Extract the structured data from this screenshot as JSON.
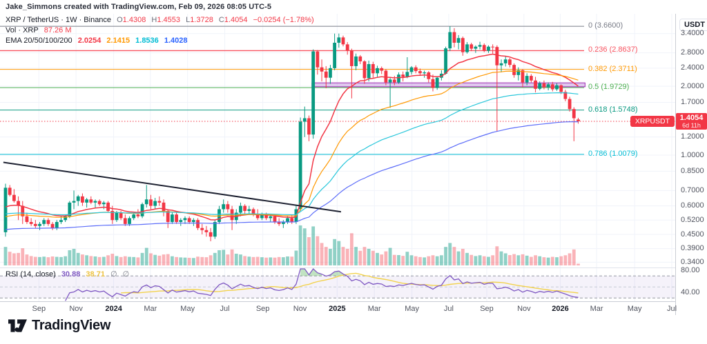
{
  "attribution": "Jake_Simmons created with TradingView.com, Feb 09, 2026 08:05 UTC-5",
  "symbol_legend": {
    "title": "XRP / TetherUS · 1W · Binance",
    "o_label": "O",
    "o": "1.4308",
    "h_label": "H",
    "h": "1.4553",
    "l_label": "L",
    "l": "1.3728",
    "c_label": "C",
    "c": "1.4054",
    "change": "−0.0254 (−1.78%)"
  },
  "volume_legend": {
    "title": "Vol · XRP",
    "value": "87.26 M"
  },
  "ema_legend": {
    "title": "EMA 20/50/100/200",
    "values": [
      {
        "text": "2.0254",
        "color": "#f23645"
      },
      {
        "text": "2.1415",
        "color": "#ff9800"
      },
      {
        "text": "1.8536",
        "color": "#00bcd4"
      },
      {
        "text": "1.4028",
        "color": "#2962ff"
      }
    ]
  },
  "rsi_legend": {
    "title": "RSI (14, close)",
    "value1": "30.88",
    "value2": "38.71",
    "empty1": "∅",
    "empty2": "∅"
  },
  "price_badge": {
    "symbol_label": "XRPUSDT",
    "price": "1.4054",
    "countdown": "6d 11h",
    "color": "#f23645"
  },
  "price_axis": {
    "currency": "USDT",
    "ticks": [
      {
        "label": "3.4000",
        "price": 3.4
      },
      {
        "label": "2.8000",
        "price": 2.8
      },
      {
        "label": "2.4000",
        "price": 2.4
      },
      {
        "label": "2.0000",
        "price": 2.0
      },
      {
        "label": "1.7000",
        "price": 1.7
      },
      {
        "label": "1.2000",
        "price": 1.2
      },
      {
        "label": "1.0000",
        "price": 1.0
      },
      {
        "label": "0.8500",
        "price": 0.85
      },
      {
        "label": "0.7000",
        "price": 0.7
      },
      {
        "label": "0.6000",
        "price": 0.6
      },
      {
        "label": "0.5200",
        "price": 0.52
      },
      {
        "label": "0.4500",
        "price": 0.45
      },
      {
        "label": "0.3900",
        "price": 0.39
      },
      {
        "label": "0.3400",
        "price": 0.34
      }
    ],
    "rsi_ticks": [
      {
        "label": "80.00",
        "value": 80
      },
      {
        "label": "40.00",
        "value": 40
      }
    ]
  },
  "time_axis": [
    {
      "label": "Sep",
      "wk": 7.8,
      "year": false
    },
    {
      "label": "Nov",
      "wk": 16.5,
      "year": false
    },
    {
      "label": "2024",
      "wk": 25.3,
      "year": true
    },
    {
      "label": "Mar",
      "wk": 33.9,
      "year": false
    },
    {
      "label": "May",
      "wk": 42.6,
      "year": false
    },
    {
      "label": "Jul",
      "wk": 51.3,
      "year": false
    },
    {
      "label": "Sep",
      "wk": 60.2,
      "year": false
    },
    {
      "label": "Nov",
      "wk": 68.9,
      "year": false
    },
    {
      "label": "2025",
      "wk": 77.6,
      "year": true
    },
    {
      "label": "Mar",
      "wk": 86.3,
      "year": false
    },
    {
      "label": "May",
      "wk": 95.1,
      "year": false
    },
    {
      "label": "Jul",
      "wk": 103.7,
      "year": false
    },
    {
      "label": "Sep",
      "wk": 112.6,
      "year": false
    },
    {
      "label": "Nov",
      "wk": 121.3,
      "year": false
    },
    {
      "label": "2026",
      "wk": 129.8,
      "year": true
    },
    {
      "label": "Mar",
      "wk": 138.3,
      "year": false
    },
    {
      "label": "May",
      "wk": 147.2,
      "year": false
    },
    {
      "label": "Jul",
      "wk": 155.9,
      "year": false
    }
  ],
  "logo": {
    "text": "TradingView"
  },
  "chart_data": {
    "type": "candlestick",
    "symbol": "XRP / TetherUS",
    "interval": "1W",
    "exchange": "Binance",
    "price_scale": "log",
    "current_price": 1.4054,
    "current_change": -0.0254,
    "current_change_pct": -1.78,
    "candle_colors": {
      "up": "#089981",
      "down": "#f23645"
    },
    "volume": {
      "up": "rgba(8,153,129,0.45)",
      "down": "rgba(242,54,69,0.38)",
      "current_label": "87.26 M"
    },
    "fib_levels": [
      {
        "level": 0,
        "label": "0 (3.6600)",
        "price": 3.66,
        "color": "#787b86"
      },
      {
        "level": 0.236,
        "label": "0.236 (2.8637)",
        "price": 2.8637,
        "color": "#f7525f"
      },
      {
        "level": 0.382,
        "label": "0.382 (2.3711)",
        "price": 2.3711,
        "color": "#ff9800"
      },
      {
        "level": 0.5,
        "label": "0.5 (1.9729)",
        "price": 1.9729,
        "color": "#4caf50"
      },
      {
        "level": 0.618,
        "label": "0.618 (1.5748)",
        "price": 1.5748,
        "color": "#089981"
      },
      {
        "level": 0.786,
        "label": "0.786 (1.0079)",
        "price": 1.0079,
        "color": "#00bcd4"
      }
    ],
    "trendline": {
      "from_week": -0.5,
      "from_price": 0.93,
      "to_week": 78.5,
      "to_price": 0.565,
      "color": "#1c2030"
    },
    "support_zone": {
      "from_week": 71.7,
      "to_week": 135.6,
      "price_low": 1.99,
      "price_high": 2.07,
      "fill": "rgba(187,134,219,0.45)",
      "border": "#9c27b0"
    },
    "indicators": {
      "ema": {
        "periods": [
          20,
          50,
          100,
          200
        ],
        "colors": [
          "#f23645",
          "#ff9800",
          "#26c6da",
          "#5b6cf9"
        ],
        "seeds": [
          0.58,
          0.53,
          0.55,
          0.47
        ],
        "current": [
          2.0254,
          2.1415,
          1.8536,
          1.4028
        ]
      },
      "rsi": {
        "length": 14,
        "color": "#7e57c2",
        "ma_color": "#f2d24b",
        "overbought": 70,
        "middle": 50,
        "oversold": 30,
        "band_fill": "rgba(126,87,194,0.08)",
        "over_fill": "rgba(76,175,80,0.35)",
        "current": 30.88,
        "ma_current": 38.71
      }
    },
    "candles": [
      [
        0.46,
        0.75,
        0.44,
        0.72,
        950
      ],
      [
        0.72,
        0.74,
        0.66,
        0.67,
        700
      ],
      [
        0.67,
        0.71,
        0.62,
        0.63,
        620
      ],
      [
        0.63,
        0.66,
        0.52,
        0.6,
        640
      ],
      [
        0.6,
        0.63,
        0.5,
        0.54,
        880
      ],
      [
        0.54,
        0.56,
        0.5,
        0.51,
        560
      ],
      [
        0.51,
        0.53,
        0.49,
        0.5,
        480
      ],
      [
        0.5,
        0.52,
        0.48,
        0.49,
        440
      ],
      [
        0.49,
        0.51,
        0.47,
        0.5,
        430
      ],
      [
        0.5,
        0.53,
        0.49,
        0.52,
        450
      ],
      [
        0.52,
        0.53,
        0.49,
        0.5,
        420
      ],
      [
        0.5,
        0.51,
        0.47,
        0.48,
        460
      ],
      [
        0.48,
        0.52,
        0.47,
        0.51,
        440
      ],
      [
        0.51,
        0.54,
        0.5,
        0.52,
        430
      ],
      [
        0.52,
        0.55,
        0.51,
        0.54,
        470
      ],
      [
        0.54,
        0.63,
        0.53,
        0.62,
        780
      ],
      [
        0.62,
        0.7,
        0.58,
        0.63,
        850
      ],
      [
        0.63,
        0.67,
        0.6,
        0.66,
        640
      ],
      [
        0.66,
        0.68,
        0.6,
        0.62,
        560
      ],
      [
        0.62,
        0.65,
        0.59,
        0.64,
        520
      ],
      [
        0.64,
        0.66,
        0.61,
        0.62,
        480
      ],
      [
        0.62,
        0.64,
        0.59,
        0.63,
        460
      ],
      [
        0.63,
        0.64,
        0.6,
        0.61,
        430
      ],
      [
        0.61,
        0.63,
        0.58,
        0.62,
        440
      ],
      [
        0.62,
        0.63,
        0.56,
        0.57,
        520
      ],
      [
        0.57,
        0.6,
        0.5,
        0.52,
        600
      ],
      [
        0.52,
        0.57,
        0.51,
        0.56,
        480
      ],
      [
        0.56,
        0.57,
        0.52,
        0.53,
        430
      ],
      [
        0.53,
        0.55,
        0.49,
        0.5,
        470
      ],
      [
        0.5,
        0.54,
        0.49,
        0.53,
        440
      ],
      [
        0.53,
        0.56,
        0.52,
        0.55,
        430
      ],
      [
        0.55,
        0.58,
        0.53,
        0.54,
        410
      ],
      [
        0.54,
        0.62,
        0.53,
        0.61,
        640
      ],
      [
        0.61,
        0.74,
        0.59,
        0.64,
        900
      ],
      [
        0.64,
        0.67,
        0.58,
        0.6,
        620
      ],
      [
        0.6,
        0.65,
        0.58,
        0.63,
        540
      ],
      [
        0.63,
        0.66,
        0.6,
        0.62,
        500
      ],
      [
        0.62,
        0.64,
        0.54,
        0.57,
        560
      ],
      [
        0.57,
        0.58,
        0.48,
        0.51,
        580
      ],
      [
        0.51,
        0.56,
        0.5,
        0.55,
        470
      ],
      [
        0.55,
        0.56,
        0.5,
        0.51,
        430
      ],
      [
        0.51,
        0.53,
        0.49,
        0.52,
        410
      ],
      [
        0.52,
        0.54,
        0.5,
        0.53,
        400
      ],
      [
        0.53,
        0.54,
        0.5,
        0.51,
        390
      ],
      [
        0.51,
        0.53,
        0.49,
        0.52,
        380
      ],
      [
        0.52,
        0.53,
        0.47,
        0.48,
        450
      ],
      [
        0.48,
        0.5,
        0.45,
        0.47,
        430
      ],
      [
        0.47,
        0.49,
        0.44,
        0.46,
        420
      ],
      [
        0.46,
        0.48,
        0.42,
        0.44,
        520
      ],
      [
        0.44,
        0.52,
        0.43,
        0.51,
        640
      ],
      [
        0.51,
        0.6,
        0.5,
        0.58,
        780
      ],
      [
        0.58,
        0.64,
        0.56,
        0.61,
        800
      ],
      [
        0.61,
        0.63,
        0.56,
        0.58,
        560
      ],
      [
        0.58,
        0.6,
        0.47,
        0.52,
        820
      ],
      [
        0.52,
        0.58,
        0.5,
        0.56,
        600
      ],
      [
        0.56,
        0.62,
        0.54,
        0.6,
        560
      ],
      [
        0.6,
        0.61,
        0.55,
        0.57,
        480
      ],
      [
        0.57,
        0.6,
        0.55,
        0.58,
        450
      ],
      [
        0.58,
        0.59,
        0.54,
        0.55,
        430
      ],
      [
        0.55,
        0.58,
        0.52,
        0.53,
        440
      ],
      [
        0.53,
        0.56,
        0.52,
        0.55,
        420
      ],
      [
        0.55,
        0.56,
        0.52,
        0.53,
        400
      ],
      [
        0.53,
        0.55,
        0.51,
        0.54,
        410
      ],
      [
        0.54,
        0.55,
        0.5,
        0.51,
        400
      ],
      [
        0.51,
        0.53,
        0.49,
        0.5,
        430
      ],
      [
        0.5,
        0.52,
        0.48,
        0.51,
        420
      ],
      [
        0.51,
        0.54,
        0.5,
        0.53,
        460
      ],
      [
        0.53,
        0.55,
        0.5,
        0.51,
        450
      ],
      [
        0.51,
        0.6,
        0.5,
        0.58,
        760
      ],
      [
        0.58,
        1.46,
        0.57,
        1.4,
        2050
      ],
      [
        1.4,
        1.63,
        1.2,
        1.45,
        1900
      ],
      [
        1.45,
        1.49,
        1.15,
        1.23,
        1450
      ],
      [
        1.23,
        2.9,
        1.18,
        2.84,
        2000
      ],
      [
        2.84,
        2.88,
        2.25,
        2.42,
        1500
      ],
      [
        2.42,
        2.62,
        2.1,
        2.32,
        1150
      ],
      [
        2.32,
        2.45,
        1.96,
        2.18,
        950
      ],
      [
        2.18,
        2.48,
        2.05,
        2.4,
        850
      ],
      [
        2.4,
        3.4,
        2.35,
        3.1,
        1350
      ],
      [
        3.1,
        3.4,
        2.95,
        3.27,
        1250
      ],
      [
        3.27,
        3.33,
        2.99,
        3.05,
        950
      ],
      [
        3.05,
        3.12,
        2.75,
        2.87,
        850
      ],
      [
        2.87,
        2.92,
        1.77,
        2.45,
        1650
      ],
      [
        2.45,
        2.78,
        2.35,
        2.7,
        950
      ],
      [
        2.7,
        2.74,
        2.5,
        2.57,
        750
      ],
      [
        2.57,
        2.6,
        2.05,
        2.17,
        950
      ],
      [
        2.17,
        2.59,
        2.1,
        2.5,
        850
      ],
      [
        2.5,
        2.56,
        2.18,
        2.28,
        750
      ],
      [
        2.28,
        2.46,
        2.2,
        2.4,
        640
      ],
      [
        2.4,
        2.44,
        2.26,
        2.34,
        560
      ],
      [
        2.34,
        2.38,
        2.02,
        2.08,
        720
      ],
      [
        2.08,
        2.18,
        1.61,
        2.14,
        900
      ],
      [
        2.14,
        2.22,
        2.02,
        2.08,
        540
      ],
      [
        2.08,
        2.3,
        2.05,
        2.25,
        530
      ],
      [
        2.25,
        2.32,
        2.1,
        2.2,
        490
      ],
      [
        2.2,
        2.68,
        2.17,
        2.31,
        700
      ],
      [
        2.31,
        2.45,
        2.25,
        2.42,
        520
      ],
      [
        2.42,
        2.47,
        2.28,
        2.33,
        470
      ],
      [
        2.33,
        2.39,
        2.22,
        2.28,
        430
      ],
      [
        2.28,
        2.34,
        2.18,
        2.3,
        410
      ],
      [
        2.3,
        2.33,
        2.08,
        2.15,
        470
      ],
      [
        2.15,
        2.25,
        1.9,
        1.97,
        520
      ],
      [
        1.97,
        2.2,
        1.93,
        2.18,
        470
      ],
      [
        2.18,
        2.35,
        2.12,
        2.27,
        520
      ],
      [
        2.27,
        2.98,
        2.25,
        2.93,
        950
      ],
      [
        2.93,
        3.66,
        2.85,
        3.45,
        1150
      ],
      [
        3.45,
        3.59,
        2.96,
        3.1,
        950
      ],
      [
        3.1,
        3.35,
        2.9,
        3.25,
        720
      ],
      [
        3.25,
        3.3,
        2.72,
        2.82,
        850
      ],
      [
        2.82,
        3.12,
        2.78,
        3.05,
        640
      ],
      [
        3.05,
        3.1,
        2.85,
        2.92,
        540
      ],
      [
        2.92,
        3.02,
        2.8,
        2.98,
        480
      ],
      [
        2.98,
        3.13,
        2.9,
        3.03,
        520
      ],
      [
        3.03,
        3.08,
        2.82,
        2.86,
        470
      ],
      [
        2.86,
        3.02,
        2.8,
        2.98,
        440
      ],
      [
        2.98,
        3.05,
        2.78,
        2.97,
        520
      ],
      [
        2.97,
        3.02,
        1.27,
        2.47,
        980
      ],
      [
        2.47,
        2.62,
        2.3,
        2.52,
        720
      ],
      [
        2.52,
        2.7,
        2.44,
        2.62,
        620
      ],
      [
        2.62,
        2.66,
        2.42,
        2.48,
        530
      ],
      [
        2.48,
        2.52,
        2.18,
        2.24,
        580
      ],
      [
        2.24,
        2.42,
        2.12,
        2.35,
        520
      ],
      [
        2.35,
        2.38,
        1.98,
        2.08,
        570
      ],
      [
        2.08,
        2.28,
        2.02,
        2.22,
        500
      ],
      [
        2.22,
        2.26,
        2.08,
        2.12,
        440
      ],
      [
        2.12,
        2.2,
        1.88,
        1.95,
        520
      ],
      [
        1.95,
        2.1,
        1.92,
        2.06,
        470
      ],
      [
        2.06,
        2.12,
        1.94,
        1.98,
        420
      ],
      [
        1.98,
        2.08,
        1.92,
        2.04,
        400
      ],
      [
        2.04,
        2.09,
        1.9,
        1.94,
        440
      ],
      [
        1.94,
        2.06,
        1.91,
        2.02,
        420
      ],
      [
        2.02,
        2.04,
        1.85,
        1.89,
        470
      ],
      [
        1.89,
        1.93,
        1.72,
        1.76,
        520
      ],
      [
        1.76,
        1.8,
        1.55,
        1.59,
        620
      ],
      [
        1.59,
        1.62,
        1.15,
        1.45,
        820
      ],
      [
        1.4308,
        1.4553,
        1.3728,
        1.4054,
        87.26
      ]
    ]
  }
}
